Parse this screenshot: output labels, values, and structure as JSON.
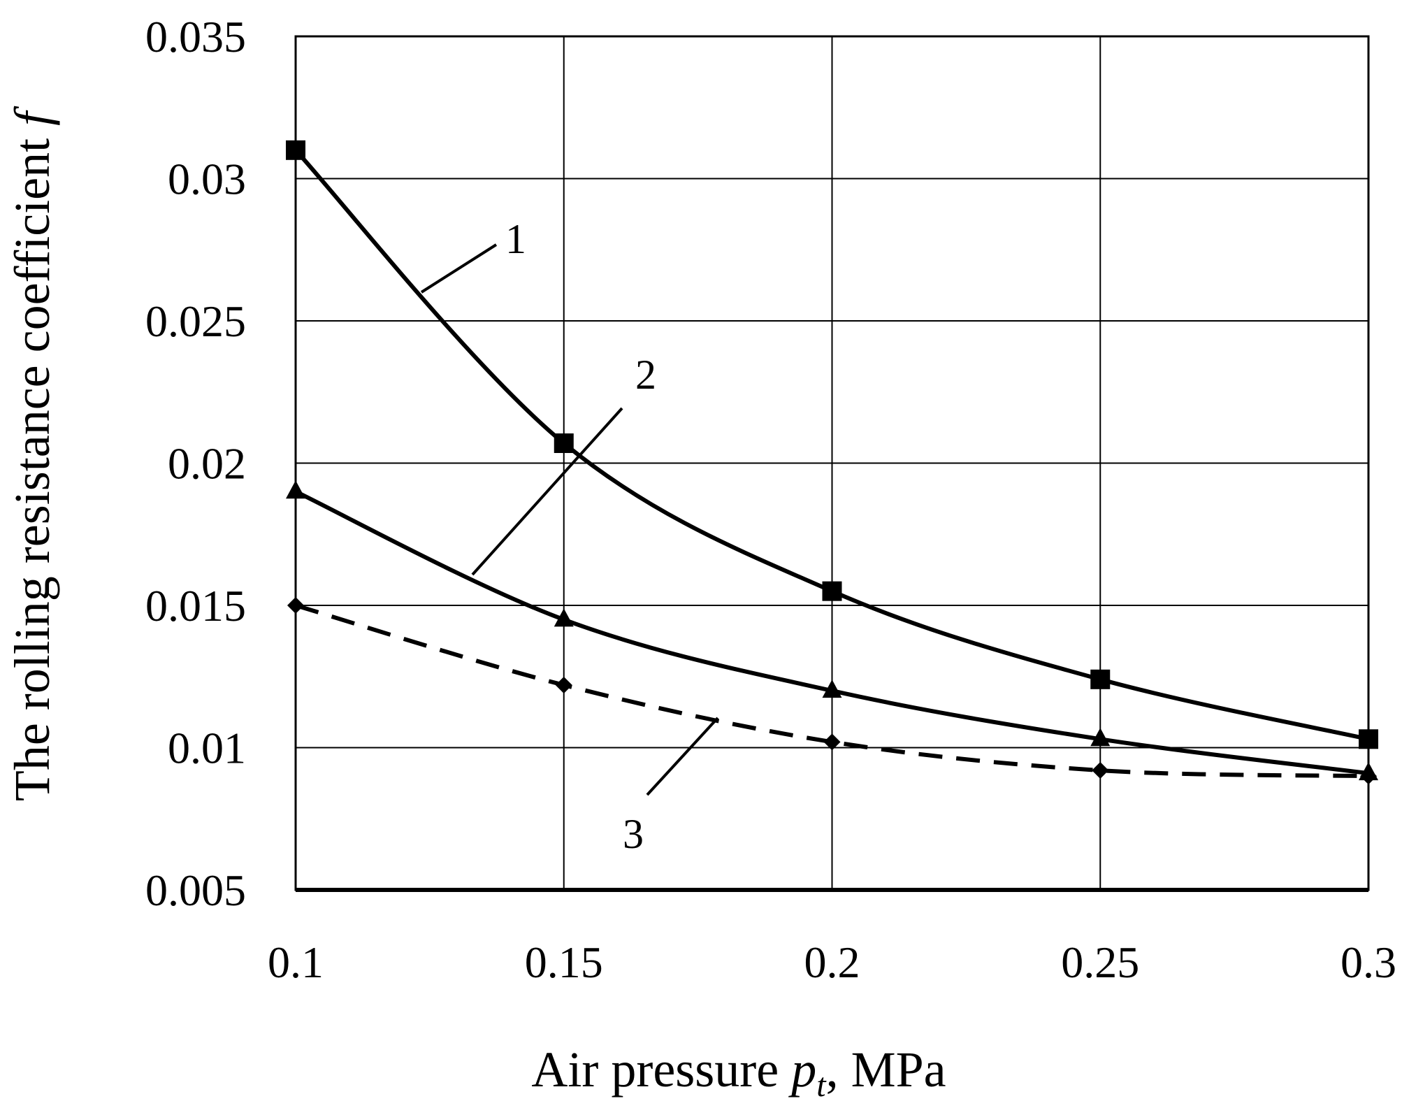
{
  "chart_data": {
    "type": "line",
    "title": "",
    "xlabel": {
      "prefix": "Air pressure ",
      "var": "p",
      "sub": "t",
      "suffix": ", MPa"
    },
    "ylabel": {
      "prefix": "The rolling resistance coefficient ",
      "var": "f"
    },
    "x": [
      0.1,
      0.15,
      0.2,
      0.25,
      0.3
    ],
    "xlim": [
      0.1,
      0.3
    ],
    "ylim": [
      0.005,
      0.035
    ],
    "x_ticks": [
      "0.1",
      "0.15",
      "0.2",
      "0.25",
      "0.3"
    ],
    "y_ticks": [
      "0.005",
      "0.01",
      "0.015",
      "0.02",
      "0.025",
      "0.03",
      "0.035"
    ],
    "grid": true,
    "series": [
      {
        "name": "1",
        "marker": "square",
        "style": "solid",
        "values": [
          0.031,
          0.0207,
          0.0155,
          0.0124,
          0.0103
        ]
      },
      {
        "name": "2",
        "marker": "triangle",
        "style": "solid",
        "values": [
          0.019,
          0.0145,
          0.012,
          0.0103,
          0.0091
        ]
      },
      {
        "name": "3",
        "marker": "diamond",
        "style": "dashed",
        "values": [
          0.015,
          0.0122,
          0.0102,
          0.0092,
          0.009
        ]
      }
    ]
  }
}
